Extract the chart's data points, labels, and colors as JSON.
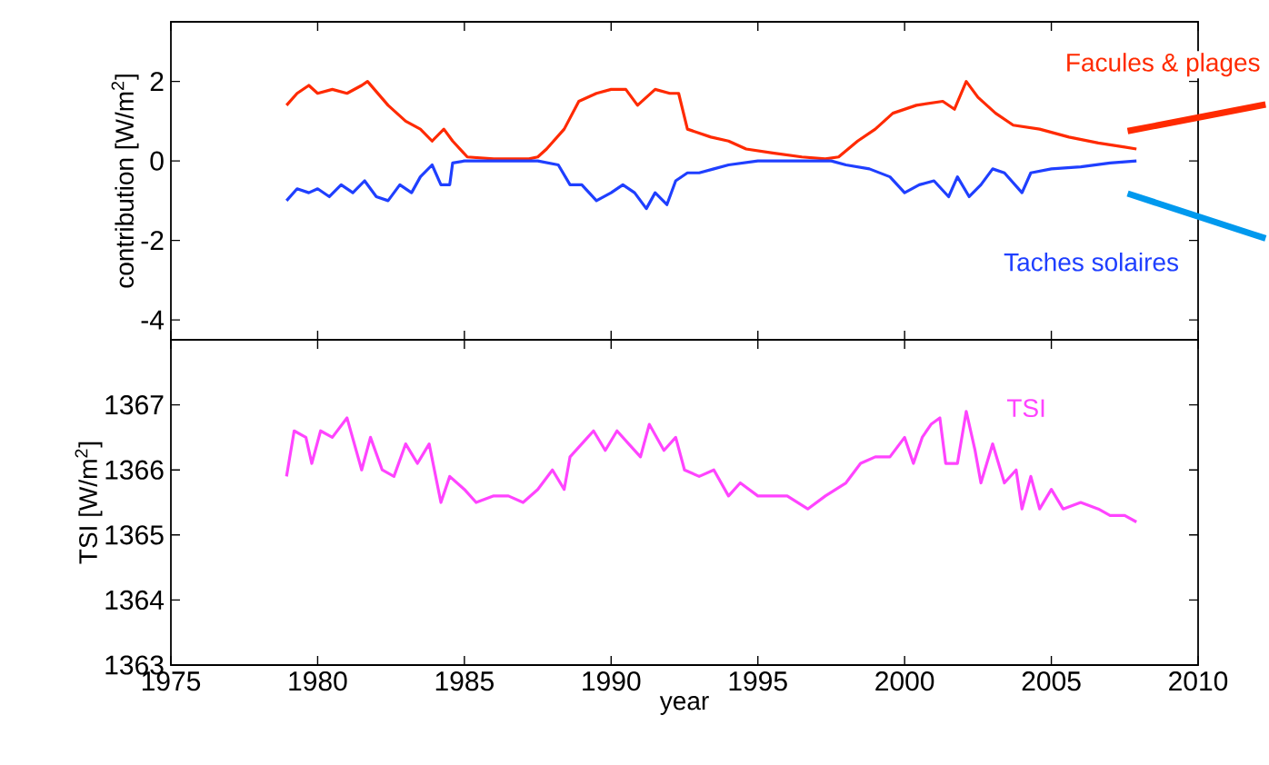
{
  "chart_data": [
    {
      "type": "line",
      "ylabel": "contribution [W/m$^{2}$]",
      "tick_labels": "y",
      "xlim": [
        1975,
        2010
      ],
      "xticks": [
        1975,
        1980,
        1985,
        1990,
        1995,
        2000,
        2005,
        2010
      ],
      "ylim": [
        -4.5,
        3.5
      ],
      "yticks": [
        -4,
        -2,
        0,
        2
      ],
      "series": [
        {
          "name": "Facules & plages",
          "color": "#ff2a00",
          "x": [
            1978.94,
            1979.3,
            1979.7,
            1980,
            1980.5,
            1981,
            1981.5,
            1981.7,
            1982.4,
            1983,
            1983.5,
            1983.9,
            1984.3,
            1984.6,
            1985.1,
            1986,
            1987.2,
            1987.5,
            1987.8,
            1988.4,
            1988.9,
            1989.5,
            1990,
            1990.5,
            1990.9,
            1991.5,
            1992,
            1992.3,
            1992.6,
            1993.4,
            1994,
            1994.6,
            1995.5,
            1996.5,
            1997.3,
            1997.75,
            1998.4,
            1999,
            1999.6,
            2000.4,
            2001.3,
            2001.7,
            2002.1,
            2002.5,
            2003.1,
            2003.7,
            2004.6,
            2005.6,
            2006.6,
            2007.5,
            2007.9
          ],
          "values": [
            1.4,
            1.7,
            1.9,
            1.7,
            1.8,
            1.7,
            1.9,
            2.0,
            1.4,
            1.0,
            0.8,
            0.5,
            0.8,
            0.5,
            0.1,
            0.05,
            0.05,
            0.1,
            0.3,
            0.8,
            1.5,
            1.7,
            1.8,
            1.8,
            1.4,
            1.8,
            1.7,
            1.7,
            0.8,
            0.6,
            0.5,
            0.3,
            0.2,
            0.1,
            0.05,
            0.1,
            0.5,
            0.8,
            1.2,
            1.4,
            1.5,
            1.3,
            2.0,
            1.6,
            1.2,
            0.9,
            0.8,
            0.6,
            0.45,
            0.35,
            0.3
          ]
        },
        {
          "name": "Taches solaires",
          "color": "#1f3fff",
          "x": [
            1978.94,
            1979.3,
            1979.7,
            1980,
            1980.4,
            1980.8,
            1981.2,
            1981.6,
            1982,
            1982.4,
            1982.8,
            1983.2,
            1983.5,
            1983.9,
            1984.2,
            1984.5,
            1984.6,
            1985,
            1987.5,
            1988.2,
            1988.6,
            1989,
            1989.5,
            1990,
            1990.4,
            1990.8,
            1991.2,
            1991.5,
            1991.9,
            1992.2,
            1992.6,
            1993,
            1993.5,
            1994,
            1995,
            1997.5,
            1998,
            1998.8,
            1999.5,
            2000,
            2000.5,
            2001,
            2001.5,
            2001.8,
            2002.2,
            2002.6,
            2003,
            2003.4,
            2004,
            2004.3,
            2005,
            2006,
            2007,
            2007.9
          ],
          "values": [
            -1.0,
            -0.7,
            -0.8,
            -0.7,
            -0.9,
            -0.6,
            -0.8,
            -0.5,
            -0.9,
            -1.0,
            -0.6,
            -0.8,
            -0.4,
            -0.1,
            -0.6,
            -0.6,
            -0.05,
            0,
            0,
            -0.1,
            -0.6,
            -0.6,
            -1.0,
            -0.8,
            -0.6,
            -0.8,
            -1.2,
            -0.8,
            -1.1,
            -0.5,
            -0.3,
            -0.3,
            -0.2,
            -0.1,
            0,
            0,
            -0.1,
            -0.2,
            -0.4,
            -0.8,
            -0.6,
            -0.5,
            -0.9,
            -0.4,
            -0.9,
            -0.6,
            -0.2,
            -0.3,
            -0.8,
            -0.3,
            -0.2,
            -0.15,
            -0.05,
            0
          ]
        }
      ]
    },
    {
      "type": "line",
      "xlabel": "year",
      "ylabel": "TSI [W/m$^{2}$]",
      "xlim": [
        1975,
        2010
      ],
      "xticks": [
        1975,
        1980,
        1985,
        1990,
        1995,
        2000,
        2005,
        2010
      ],
      "ylim": [
        1363,
        1368
      ],
      "yticks": [
        1363,
        1364,
        1365,
        1366,
        1367
      ],
      "series": [
        {
          "name": "TSI",
          "color": "#ff44ff",
          "x": [
            1978.94,
            1979.2,
            1979.6,
            1979.8,
            1980.1,
            1980.5,
            1981,
            1981.5,
            1981.8,
            1982.2,
            1982.6,
            1983,
            1983.4,
            1983.8,
            1984.2,
            1984.5,
            1985,
            1985.4,
            1986,
            1986.5,
            1987,
            1987.5,
            1988,
            1988.4,
            1988.6,
            1989.2,
            1989.4,
            1989.8,
            1990.2,
            1990.6,
            1991,
            1991.3,
            1991.8,
            1992.2,
            1992.5,
            1993,
            1993.5,
            1994,
            1994.4,
            1995,
            1996,
            1996.7,
            1997.3,
            1998,
            1998.5,
            1999,
            1999.5,
            2000,
            2000.3,
            2000.6,
            2000.9,
            2001.2,
            2001.4,
            2001.8,
            2002.1,
            2002.4,
            2002.6,
            2003,
            2003.4,
            2003.8,
            2004,
            2004.3,
            2004.6,
            2005,
            2005.4,
            2006,
            2006.6,
            2007,
            2007.5,
            2007.9
          ],
          "values": [
            1365.9,
            1366.6,
            1366.5,
            1366.1,
            1366.6,
            1366.5,
            1366.8,
            1366.0,
            1366.5,
            1366.0,
            1365.9,
            1366.4,
            1366.1,
            1366.4,
            1365.5,
            1365.9,
            1365.7,
            1365.5,
            1365.6,
            1365.6,
            1365.5,
            1365.7,
            1366.0,
            1365.7,
            1366.2,
            1366.5,
            1366.6,
            1366.3,
            1366.6,
            1366.4,
            1366.2,
            1366.7,
            1366.3,
            1366.5,
            1366.0,
            1365.9,
            1366.0,
            1365.6,
            1365.8,
            1365.6,
            1365.6,
            1365.4,
            1365.6,
            1365.8,
            1366.1,
            1366.2,
            1366.2,
            1366.5,
            1366.1,
            1366.5,
            1366.7,
            1366.8,
            1366.1,
            1366.1,
            1366.9,
            1366.3,
            1365.8,
            1366.4,
            1365.8,
            1366.0,
            1365.4,
            1365.9,
            1365.4,
            1365.7,
            1365.4,
            1365.5,
            1365.4,
            1365.3,
            1365.3,
            1365.2
          ]
        }
      ]
    }
  ]
}
